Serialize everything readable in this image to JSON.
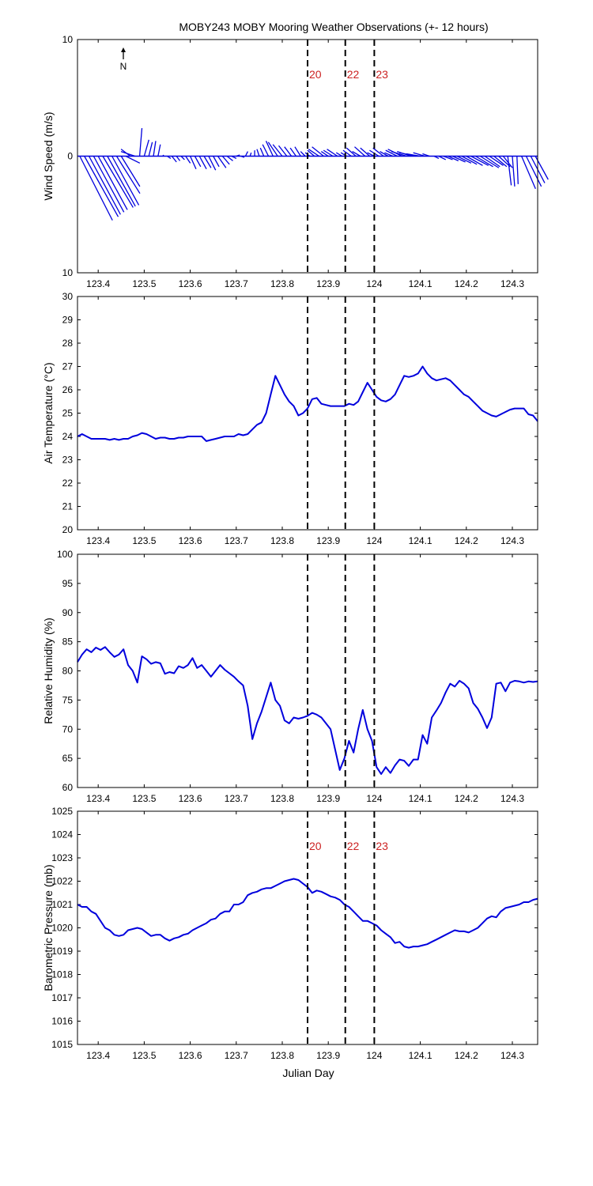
{
  "figure": {
    "title": "MOBY243 MOBY Mooring Weather Observations (+- 12 hours)",
    "xlabel": "Julian Day",
    "x_ticks": [
      123.4,
      123.5,
      123.6,
      123.7,
      123.8,
      123.9,
      124.0,
      124.1,
      124.2,
      124.3
    ],
    "x_tick_labels": [
      "123.4",
      "123.5",
      "123.6",
      "123.7",
      "123.8",
      "123.9",
      "124",
      "124.1",
      "124.2",
      "124.3"
    ],
    "xlim": [
      123.355,
      124.355
    ],
    "event_lines": [
      {
        "x": 123.855,
        "label": "20"
      },
      {
        "x": 123.937,
        "label": "22"
      },
      {
        "x": 124.0,
        "label": "23"
      }
    ],
    "north_label": "N"
  },
  "colors": {
    "series": "#0000dd",
    "event_line": "#000000",
    "event_label": "#cc2222",
    "axes": "#000000"
  },
  "chart_data": [
    {
      "type": "quiver",
      "name": "wind",
      "ylabel": "Wind Speed (m/s)",
      "ylim": [
        -10,
        10
      ],
      "y_tick_labels": [
        "10",
        "0",
        "10"
      ],
      "y_ticks": [
        10,
        0,
        -10
      ],
      "show_event_labels": true,
      "x": [
        123.36,
        123.37,
        123.38,
        123.39,
        123.4,
        123.41,
        123.42,
        123.43,
        123.44,
        123.45,
        123.46,
        123.47,
        123.48,
        123.49,
        123.5,
        123.51,
        123.52,
        123.53,
        123.54,
        123.55,
        123.56,
        123.57,
        123.58,
        123.59,
        123.6,
        123.61,
        123.62,
        123.63,
        123.64,
        123.65,
        123.66,
        123.67,
        123.68,
        123.69,
        123.7,
        123.71,
        123.72,
        123.73,
        123.74,
        123.75,
        123.76,
        123.77,
        123.78,
        123.79,
        123.8,
        123.81,
        123.82,
        123.83,
        123.84,
        123.85,
        123.86,
        123.87,
        123.88,
        123.89,
        123.9,
        123.91,
        123.92,
        123.93,
        123.94,
        123.95,
        123.96,
        123.97,
        123.98,
        123.99,
        124.0,
        124.01,
        124.02,
        124.03,
        124.04,
        124.05,
        124.06,
        124.07,
        124.08,
        124.09,
        124.1,
        124.11,
        124.12,
        124.13,
        124.14,
        124.15,
        124.16,
        124.17,
        124.18,
        124.19,
        124.2,
        124.21,
        124.22,
        124.23,
        124.24,
        124.25,
        124.26,
        124.27,
        124.28,
        124.29,
        124.3,
        124.31,
        124.32,
        124.33,
        124.34,
        124.35
      ],
      "u": [
        2.8,
        2.9,
        2.7,
        2.6,
        2.5,
        2.6,
        2.4,
        2.3,
        2.0,
        1.6,
        1.2,
        -0.8,
        -1.2,
        0.2,
        0.4,
        0.3,
        0.2,
        0.2,
        0.1,
        0.3,
        0.4,
        0.3,
        0.3,
        0.4,
        0.5,
        0.5,
        0.6,
        0.6,
        0.6,
        0.5,
        0.7,
        0.6,
        0.5,
        0.4,
        0.3,
        0.3,
        0.2,
        0.1,
        0.0,
        -0.2,
        -0.3,
        -0.5,
        -0.6,
        -0.8,
        -0.8,
        -0.7,
        -0.6,
        -0.5,
        -0.5,
        -0.4,
        -0.4,
        -0.6,
        -0.9,
        -1.0,
        -0.6,
        -0.8,
        -0.9,
        -0.5,
        -0.5,
        -0.7,
        -0.8,
        -0.7,
        -0.9,
        -0.8,
        -0.6,
        -0.8,
        -0.9,
        -0.7,
        -0.7,
        -1.0,
        -1.2,
        -1.3,
        -1.2,
        -1.4,
        -1.2,
        -1.0,
        -0.6,
        0.4,
        0.6,
        0.8,
        0.9,
        1.1,
        1.2,
        1.3,
        1.4,
        1.5,
        1.5,
        1.6,
        1.3,
        1.2,
        1.1,
        1.0,
        0.8,
        0.3,
        0.2,
        0.1,
        1.2,
        1.3,
        1.2,
        1.1
      ],
      "v": [
        -5.5,
        -5.2,
        -5.0,
        -4.8,
        -4.6,
        -4.4,
        -4.3,
        -4.2,
        -3.2,
        -2.6,
        -0.6,
        0.6,
        0.4,
        2.4,
        1.4,
        1.2,
        1.3,
        1.0,
        0.1,
        -0.2,
        -0.5,
        -0.4,
        -0.3,
        -0.6,
        -1.1,
        -0.9,
        -1.1,
        -1.0,
        -1.2,
        -0.9,
        -1.0,
        -0.7,
        -0.4,
        -0.2,
        0.1,
        -0.1,
        0.4,
        0.3,
        0.5,
        0.6,
        0.7,
        1.0,
        1.3,
        1.2,
        1.0,
        0.9,
        0.8,
        0.7,
        0.8,
        0.4,
        0.3,
        0.5,
        0.6,
        0.8,
        0.4,
        0.5,
        0.6,
        0.3,
        0.3,
        0.5,
        0.7,
        0.4,
        0.8,
        0.7,
        0.3,
        0.5,
        0.7,
        0.4,
        0.3,
        0.5,
        0.6,
        0.4,
        0.4,
        0.3,
        0.2,
        0.3,
        0.2,
        -0.2,
        -0.3,
        -0.3,
        -0.4,
        -0.5,
        -0.6,
        -0.7,
        -0.8,
        -0.8,
        -0.9,
        -1.0,
        -0.9,
        -0.8,
        -0.9,
        -0.9,
        -1.0,
        -2.5,
        -2.6,
        -2.4,
        -2.8,
        -2.6,
        -2.3,
        -2.0
      ]
    },
    {
      "type": "line",
      "name": "air-temperature",
      "ylabel": "Air Temperature (°C)",
      "ylim": [
        20,
        30
      ],
      "y_ticks": [
        20,
        21,
        22,
        23,
        24,
        25,
        26,
        27,
        28,
        29,
        30
      ],
      "y_tick_labels": [
        "20",
        "21",
        "22",
        "23",
        "24",
        "25",
        "26",
        "27",
        "28",
        "29",
        "30"
      ],
      "show_event_labels": false,
      "x": [
        123.355,
        123.365,
        123.375,
        123.385,
        123.395,
        123.405,
        123.415,
        123.425,
        123.435,
        123.445,
        123.455,
        123.465,
        123.475,
        123.485,
        123.495,
        123.505,
        123.515,
        123.525,
        123.535,
        123.545,
        123.555,
        123.565,
        123.575,
        123.585,
        123.595,
        123.605,
        123.615,
        123.625,
        123.635,
        123.645,
        123.655,
        123.665,
        123.675,
        123.685,
        123.695,
        123.705,
        123.715,
        123.725,
        123.735,
        123.745,
        123.755,
        123.765,
        123.775,
        123.785,
        123.795,
        123.805,
        123.815,
        123.825,
        123.835,
        123.845,
        123.855,
        123.865,
        123.875,
        123.885,
        123.895,
        123.905,
        123.915,
        123.925,
        123.935,
        123.945,
        123.955,
        123.965,
        123.975,
        123.985,
        123.995,
        124.005,
        124.015,
        124.025,
        124.035,
        124.045,
        124.055,
        124.065,
        124.075,
        124.085,
        124.095,
        124.105,
        124.115,
        124.125,
        124.135,
        124.145,
        124.155,
        124.165,
        124.175,
        124.185,
        124.195,
        124.205,
        124.215,
        124.225,
        124.235,
        124.245,
        124.255,
        124.265,
        124.275,
        124.285,
        124.295,
        124.305,
        124.315,
        124.325,
        124.335,
        124.345,
        124.355
      ],
      "y": [
        24.0,
        24.1,
        24.0,
        23.9,
        23.9,
        23.9,
        23.9,
        23.85,
        23.9,
        23.85,
        23.9,
        23.9,
        24.0,
        24.05,
        24.15,
        24.1,
        24.0,
        23.9,
        23.95,
        23.95,
        23.9,
        23.9,
        23.95,
        23.95,
        24.0,
        24.0,
        24.0,
        24.0,
        23.8,
        23.85,
        23.9,
        23.95,
        24.0,
        24.0,
        24.0,
        24.1,
        24.05,
        24.1,
        24.3,
        24.5,
        24.6,
        25.0,
        25.8,
        26.6,
        26.2,
        25.8,
        25.5,
        25.3,
        24.9,
        25.0,
        25.2,
        25.6,
        25.65,
        25.4,
        25.35,
        25.3,
        25.3,
        25.3,
        25.3,
        25.4,
        25.35,
        25.5,
        25.9,
        26.3,
        26.0,
        25.7,
        25.55,
        25.5,
        25.6,
        25.8,
        26.2,
        26.6,
        26.55,
        26.6,
        26.7,
        27.0,
        26.7,
        26.5,
        26.4,
        26.45,
        26.5,
        26.4,
        26.2,
        26.0,
        25.8,
        25.7,
        25.5,
        25.3,
        25.1,
        25.0,
        24.9,
        24.85,
        24.95,
        25.05,
        25.15,
        25.2,
        25.2,
        25.2,
        24.95,
        24.9,
        24.65
      ]
    },
    {
      "type": "line",
      "name": "relative-humidity",
      "ylabel": "Relative Humidity (%)",
      "ylim": [
        60,
        100
      ],
      "y_ticks": [
        60,
        65,
        70,
        75,
        80,
        85,
        90,
        95,
        100
      ],
      "y_tick_labels": [
        "60",
        "65",
        "70",
        "75",
        "80",
        "85",
        "90",
        "95",
        "100"
      ],
      "show_event_labels": false,
      "x": [
        123.355,
        123.365,
        123.375,
        123.385,
        123.395,
        123.405,
        123.415,
        123.425,
        123.435,
        123.445,
        123.455,
        123.465,
        123.475,
        123.485,
        123.495,
        123.505,
        123.515,
        123.525,
        123.535,
        123.545,
        123.555,
        123.565,
        123.575,
        123.585,
        123.595,
        123.605,
        123.615,
        123.625,
        123.635,
        123.645,
        123.655,
        123.665,
        123.675,
        123.685,
        123.695,
        123.705,
        123.715,
        123.725,
        123.735,
        123.745,
        123.755,
        123.765,
        123.775,
        123.785,
        123.795,
        123.805,
        123.815,
        123.825,
        123.835,
        123.845,
        123.855,
        123.865,
        123.875,
        123.885,
        123.895,
        123.905,
        123.915,
        123.925,
        123.935,
        123.945,
        123.955,
        123.965,
        123.975,
        123.985,
        123.995,
        124.005,
        124.015,
        124.025,
        124.035,
        124.045,
        124.055,
        124.065,
        124.075,
        124.085,
        124.095,
        124.105,
        124.115,
        124.125,
        124.135,
        124.145,
        124.155,
        124.165,
        124.175,
        124.185,
        124.195,
        124.205,
        124.215,
        124.225,
        124.235,
        124.245,
        124.255,
        124.265,
        124.275,
        124.285,
        124.295,
        124.305,
        124.315,
        124.325,
        124.335,
        124.345,
        124.355
      ],
      "y": [
        81.5,
        82.8,
        83.7,
        83.2,
        84.0,
        83.6,
        84.1,
        83.2,
        82.4,
        82.8,
        83.7,
        81.0,
        80.0,
        78.0,
        82.5,
        82.0,
        81.2,
        81.5,
        81.3,
        79.5,
        79.8,
        79.6,
        80.8,
        80.5,
        81.0,
        82.2,
        80.5,
        81.0,
        80.0,
        79.0,
        80.0,
        81.0,
        80.2,
        79.6,
        79.0,
        78.2,
        77.5,
        74.0,
        68.3,
        71.0,
        73.0,
        75.5,
        78.0,
        75.0,
        74.0,
        71.5,
        71.0,
        72.0,
        71.8,
        72.0,
        72.3,
        72.8,
        72.5,
        72.0,
        71.0,
        70.0,
        66.5,
        63.0,
        65.0,
        68.0,
        66.0,
        70.0,
        73.3,
        70.0,
        68.0,
        63.5,
        62.3,
        63.5,
        62.5,
        63.8,
        64.8,
        64.6,
        63.7,
        64.8,
        64.8,
        69.0,
        67.5,
        72.0,
        73.2,
        74.5,
        76.3,
        77.8,
        77.3,
        78.3,
        77.8,
        77.0,
        74.5,
        73.5,
        72.0,
        70.2,
        72.0,
        77.8,
        78.0,
        76.5,
        78.0,
        78.3,
        78.2,
        78.0,
        78.2,
        78.1,
        78.2
      ]
    },
    {
      "type": "line",
      "name": "barometric-pressure",
      "ylabel": "Barometric Pressure (mb)",
      "ylim": [
        1015,
        1025
      ],
      "y_ticks": [
        1015,
        1016,
        1017,
        1018,
        1019,
        1020,
        1021,
        1022,
        1023,
        1024,
        1025
      ],
      "y_tick_labels": [
        "1015",
        "1016",
        "1017",
        "1018",
        "1019",
        "1020",
        "1021",
        "1022",
        "1023",
        "1024",
        "1025"
      ],
      "show_event_labels": true,
      "x": [
        123.355,
        123.365,
        123.375,
        123.385,
        123.395,
        123.405,
        123.415,
        123.425,
        123.435,
        123.445,
        123.455,
        123.465,
        123.475,
        123.485,
        123.495,
        123.505,
        123.515,
        123.525,
        123.535,
        123.545,
        123.555,
        123.565,
        123.575,
        123.585,
        123.595,
        123.605,
        123.615,
        123.625,
        123.635,
        123.645,
        123.655,
        123.665,
        123.675,
        123.685,
        123.695,
        123.705,
        123.715,
        123.725,
        123.735,
        123.745,
        123.755,
        123.765,
        123.775,
        123.785,
        123.795,
        123.805,
        123.815,
        123.825,
        123.835,
        123.845,
        123.855,
        123.865,
        123.875,
        123.885,
        123.895,
        123.905,
        123.915,
        123.925,
        123.935,
        123.945,
        123.955,
        123.965,
        123.975,
        123.985,
        123.995,
        124.005,
        124.015,
        124.025,
        124.035,
        124.045,
        124.055,
        124.065,
        124.075,
        124.085,
        124.095,
        124.105,
        124.115,
        124.125,
        124.135,
        124.145,
        124.155,
        124.165,
        124.175,
        124.185,
        124.195,
        124.205,
        124.215,
        124.225,
        124.235,
        124.245,
        124.255,
        124.265,
        124.275,
        124.285,
        124.295,
        124.305,
        124.315,
        124.325,
        124.335,
        124.345,
        124.355
      ],
      "y": [
        1021.0,
        1020.9,
        1020.9,
        1020.7,
        1020.6,
        1020.3,
        1020.0,
        1019.9,
        1019.7,
        1019.65,
        1019.7,
        1019.9,
        1019.95,
        1020.0,
        1019.95,
        1019.8,
        1019.65,
        1019.7,
        1019.7,
        1019.55,
        1019.45,
        1019.55,
        1019.6,
        1019.7,
        1019.75,
        1019.9,
        1020.0,
        1020.1,
        1020.2,
        1020.35,
        1020.4,
        1020.6,
        1020.7,
        1020.7,
        1021.0,
        1021.0,
        1021.1,
        1021.4,
        1021.5,
        1021.55,
        1021.65,
        1021.7,
        1021.7,
        1021.8,
        1021.9,
        1022.0,
        1022.05,
        1022.1,
        1022.05,
        1021.9,
        1021.75,
        1021.5,
        1021.6,
        1021.55,
        1021.45,
        1021.35,
        1021.3,
        1021.2,
        1021.0,
        1020.9,
        1020.7,
        1020.5,
        1020.3,
        1020.3,
        1020.2,
        1020.1,
        1019.9,
        1019.75,
        1019.6,
        1019.35,
        1019.4,
        1019.2,
        1019.15,
        1019.2,
        1019.2,
        1019.25,
        1019.3,
        1019.4,
        1019.5,
        1019.6,
        1019.7,
        1019.8,
        1019.9,
        1019.85,
        1019.85,
        1019.8,
        1019.9,
        1020.0,
        1020.2,
        1020.4,
        1020.5,
        1020.45,
        1020.7,
        1020.85,
        1020.9,
        1020.95,
        1021.0,
        1021.1,
        1021.1,
        1021.2,
        1021.25
      ]
    }
  ]
}
